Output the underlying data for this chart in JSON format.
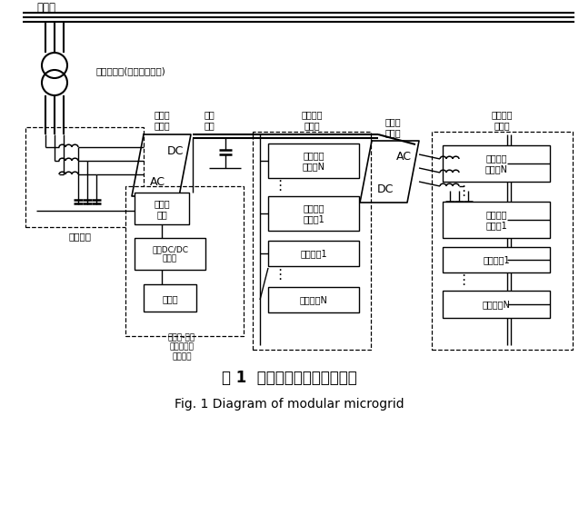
{
  "bg_color": "#ffffff",
  "title_cn": "图 1  模块化微电网结构示意图",
  "title_en": "Fig. 1 Diagram of modular microgrid",
  "grid_label": "大电网",
  "transformer_label": "隔离变压器(或升压变压器)",
  "filter_label": "滤波回路",
  "grid_conv_label": "电网侧\n变流器",
  "dc_bus_label": "直流\n母线",
  "dc_mg_label": "直流微电\n网单元",
  "mg_conv_label": "微网侧\n变流器",
  "ac_mg_label": "交流微电\n网单元",
  "supercap_label": "超级电\n容器",
  "bidir_label": "双向DC/DC\n斩波器",
  "battery_label": "蓄电池",
  "storage_label": "蓄电池-超级\n电容器混合\n储能系统",
  "dc_src_N": "直流分布\n式电源N",
  "dc_src_1": "直流分布\n式电源1",
  "dc_load_1": "直流负荷1",
  "dc_load_N": "直流负荷N",
  "ac_src_N": "交流分布\n式电源N",
  "ac_src_1": "交流分布\n式电源1",
  "ac_load_1": "交流负荷1",
  "ac_load_N": "交流负荷N"
}
